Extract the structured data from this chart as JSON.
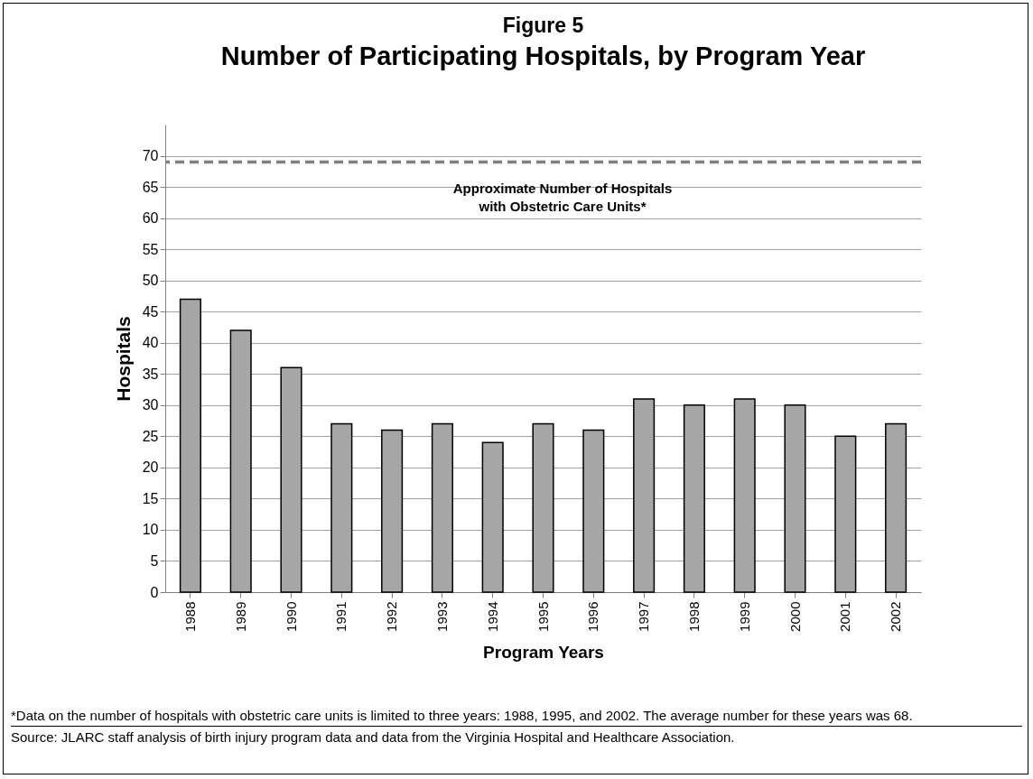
{
  "chart_data": {
    "type": "bar",
    "title": "Figure 5",
    "subtitle": "Number of Participating Hospitals, by Program Year",
    "xlabel": "Program Years",
    "ylabel": "Hospitals",
    "categories": [
      "1988",
      "1989",
      "1990",
      "1991",
      "1992",
      "1993",
      "1994",
      "1995",
      "1996",
      "1997",
      "1998",
      "1999",
      "2000",
      "2001",
      "2002"
    ],
    "values": [
      47,
      42,
      36,
      27,
      26,
      27,
      24,
      27,
      26,
      31,
      30,
      31,
      30,
      25,
      27
    ],
    "color": "#a6a6a6",
    "ylim": [
      0,
      75
    ],
    "yticks": [
      0,
      5,
      10,
      15,
      20,
      25,
      30,
      35,
      40,
      45,
      50,
      55,
      60,
      65,
      70
    ],
    "grid": "y",
    "ref_lines": [
      {
        "axis": "y",
        "value": 69,
        "label": "Approximate Number of Hospitals with Obstetric Care Units*",
        "color": "#808080",
        "line_style": "dashed"
      }
    ],
    "annotations": [
      "*Data on the number of hospitals with obstetric care units is limited to three years:  1988, 1995, and 2002.  The average number for these years was 68.",
      "Source:  JLARC staff analysis of birth injury program data and data from the Virginia Hospital and Healthcare Association."
    ]
  }
}
